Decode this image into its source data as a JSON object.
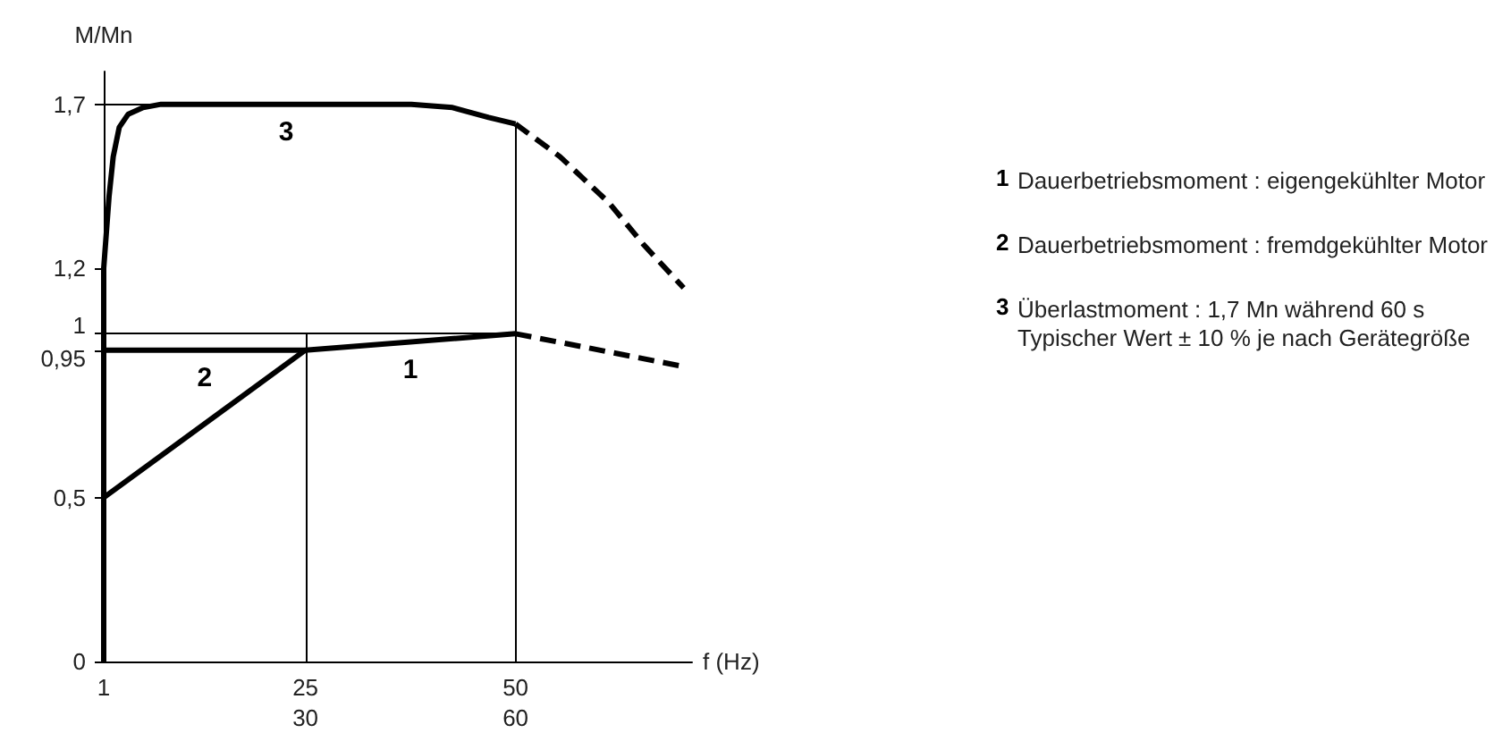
{
  "chart_data": {
    "type": "line",
    "xlabel": "f (Hz)",
    "ylabel": "M/Mn",
    "xlim": [
      1,
      71
    ],
    "xticks": [
      1,
      25,
      50
    ],
    "x2lim": [
      1.2,
      85.2
    ],
    "x2ticks": [
      30,
      60
    ],
    "ylim": [
      0,
      1.8
    ],
    "yticks": [
      0,
      {
        "value": 0.5,
        "label": "0,5"
      },
      {
        "value": 0.95,
        "label": "0,95"
      },
      1,
      {
        "value": 1.2,
        "label": "1,2"
      },
      {
        "value": 1.7,
        "label": "1,7"
      }
    ],
    "marker": "none",
    "series": [
      {
        "name": "1",
        "color": "#000000",
        "x": [
          1,
          25,
          50
        ],
        "values": [
          0.5,
          0.95,
          1
        ]
      },
      {
        "name": "2",
        "color": "#000000",
        "x": [
          1,
          25
        ],
        "values": [
          0.95,
          0.95
        ]
      },
      {
        "name": "3",
        "color": "#000000",
        "x": [
          1,
          1,
          1.64,
          2.13,
          2.85,
          3.92,
          5.69,
          7.82,
          37.6,
          42.5,
          46.8,
          50
        ],
        "values": [
          0,
          1.2,
          1.42,
          1.54,
          1.63,
          1.67,
          1.69,
          1.7,
          1.7,
          1.69,
          1.66,
          1.64
        ]
      },
      {
        "color": "#000000",
        "line_style": "dashed",
        "x": [
          50,
          70
        ],
        "values": [
          1,
          0.9
        ]
      },
      {
        "color": "#000000",
        "line_style": "dashed",
        "x": [
          50,
          55.3,
          61.1,
          65.3,
          70
        ],
        "values": [
          1.64,
          1.54,
          1.4,
          1.27,
          1.14
        ]
      }
    ],
    "ref_lines": [
      {
        "axis": "x",
        "value": 25
      },
      {
        "axis": "x",
        "value": 50
      },
      {
        "axis": "y",
        "value": 1
      },
      {
        "axis": "y",
        "value": 1.7
      }
    ],
    "annotations": [
      "Dauerbetriebsmoment : eigengekühlter Motor",
      "Dauerbetriebsmoment : fremdgekühlter Motor",
      "Überlastmoment : 1,7 Mn während 60 s\nTypischer Wert ± 10 % je nach Gerätegröße"
    ]
  }
}
